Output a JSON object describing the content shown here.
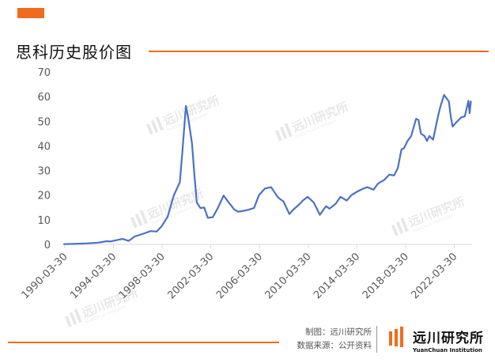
{
  "title": "思科历史股价图",
  "footer": {
    "chart_credit": "制图：远川研究所",
    "data_source": "数据来源：公开资料",
    "logo_cn": "远川研究所",
    "logo_en": "YuanChuan Institution"
  },
  "watermark": {
    "cn": "远川研究所",
    "en": "YuanChuan Institution"
  },
  "colors": {
    "accent": "#ef6c1e",
    "line": "#4a72c4",
    "axis_text": "#595959"
  },
  "chart_data": {
    "type": "line",
    "x_ticks": [
      "1990-03-30",
      "1994-03-30",
      "1998-03-30",
      "2002-03-30",
      "2006-03-30",
      "2010-03-30",
      "2014-03-30",
      "2018-03-30",
      "2022-03-30"
    ],
    "y_ticks": [
      0,
      10,
      20,
      30,
      40,
      50,
      60,
      70
    ],
    "ylim": [
      0,
      70
    ],
    "xlim": [
      1990.0,
      2023.7
    ],
    "grid": false,
    "series": [
      {
        "x": [
          1990.2,
          1991.0,
          1992.0,
          1993.0,
          1993.7,
          1994.0,
          1995.0,
          1995.5,
          1996.0,
          1996.8,
          1997.3,
          1997.8,
          1998.2,
          1998.7,
          1999.2,
          1999.7,
          1999.9,
          2000.2,
          2000.4,
          2000.7,
          2000.9,
          2001.1,
          2001.4,
          2001.7,
          2002.0,
          2002.4,
          2002.8,
          2003.3,
          2003.8,
          2004.2,
          2004.5,
          2004.8,
          2005.3,
          2005.8,
          2006.2,
          2006.7,
          2007.2,
          2007.7,
          2007.9,
          2008.2,
          2008.7,
          2009.0,
          2009.5,
          2009.8,
          2010.2,
          2010.7,
          2011.2,
          2011.7,
          2012.0,
          2012.5,
          2012.9,
          2013.4,
          2013.8,
          2014.3,
          2014.8,
          2015.1,
          2015.6,
          2016.0,
          2016.5,
          2016.9,
          2017.3,
          2017.6,
          2017.9,
          2018.1,
          2018.4,
          2018.7,
          2019.1,
          2019.3,
          2019.5,
          2019.8,
          2020.0,
          2020.2,
          2020.5,
          2020.9,
          2021.1,
          2021.4,
          2021.8,
          2021.95,
          2022.1,
          2022.4,
          2022.8,
          2023.1,
          2023.4,
          2023.5,
          2023.6
        ],
        "y": [
          0.1,
          0.2,
          0.4,
          0.7,
          1.3,
          1.2,
          2.2,
          1.4,
          3.2,
          4.5,
          5.4,
          5.2,
          7.3,
          11.2,
          19.8,
          25.2,
          37.0,
          56.2,
          51.0,
          41.0,
          28.0,
          17.0,
          14.7,
          15.0,
          10.8,
          11.0,
          14.5,
          19.8,
          16.5,
          14.0,
          13.3,
          13.5,
          14.0,
          14.8,
          20.0,
          22.7,
          23.2,
          19.5,
          18.5,
          17.5,
          12.3,
          14.0,
          16.2,
          17.8,
          19.3,
          17.0,
          12.0,
          15.5,
          14.5,
          16.5,
          19.3,
          17.8,
          20.0,
          21.5,
          22.7,
          23.2,
          22.2,
          24.8,
          26.2,
          28.3,
          28.0,
          31.0,
          38.6,
          39.0,
          42.0,
          44.0,
          51.0,
          50.5,
          45.0,
          44.0,
          42.0,
          44.0,
          42.5,
          52.0,
          56.0,
          60.7,
          58.0,
          52.0,
          47.8,
          49.5,
          51.5,
          52.0,
          58.3,
          53.2,
          58.0
        ]
      }
    ]
  }
}
